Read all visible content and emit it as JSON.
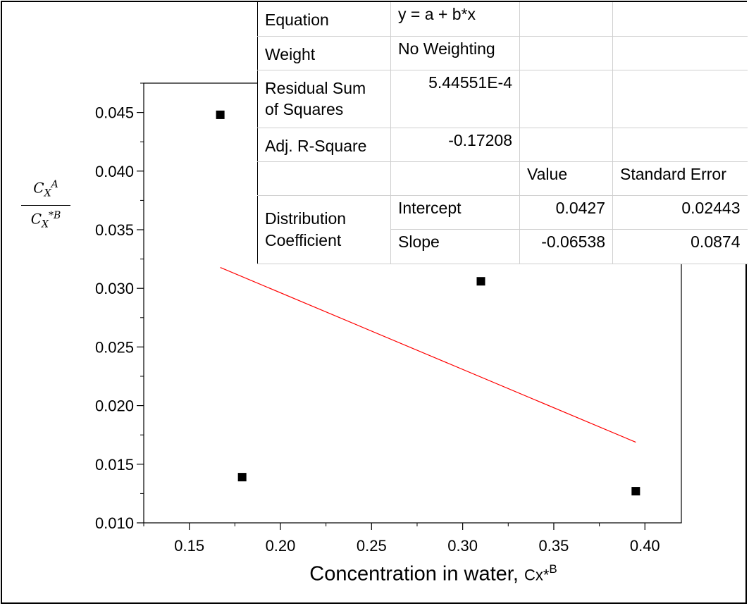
{
  "chart_data": {
    "type": "scatter",
    "xlabel_main": "Concentration in water, ",
    "xlabel_sub": "Cx*",
    "xlabel_sup": "B",
    "ylabel": {
      "numerator": "C",
      "numerator_sub": "X",
      "numerator_sup": "A",
      "denominator": "C",
      "denominator_sub": "X",
      "denominator_sup": "*B"
    },
    "xlim": [
      0.125,
      0.42
    ],
    "ylim": [
      0.01,
      0.0475
    ],
    "x_ticks": [
      "0.15",
      "0.20",
      "0.25",
      "0.30",
      "0.35",
      "0.40"
    ],
    "y_ticks": [
      "0.045",
      "0.040",
      "0.035",
      "0.030",
      "0.025",
      "0.020",
      "0.015",
      "0.010"
    ],
    "series": [
      {
        "points": [
          {
            "x": 0.167,
            "y": 0.0448
          },
          {
            "x": 0.179,
            "y": 0.0139
          },
          {
            "x": 0.31,
            "y": 0.0306
          },
          {
            "x": 0.395,
            "y": 0.0127
          }
        ],
        "marker": "square",
        "color": "#000000"
      }
    ],
    "fit_line": {
      "x_start": 0.167,
      "x_end": 0.395,
      "intercept": 0.0427,
      "slope": -0.06538,
      "color": "#ff0000"
    },
    "grid": false
  },
  "stats_table": {
    "equation_label": "Equation",
    "equation_value": "y = a + b*x",
    "weight_label": "Weight",
    "weight_value": "No Weighting",
    "rss_label": "Residual Sum of Squares",
    "rss_value": "5.44551E-4",
    "adjr_label": "Adj. R-Square",
    "adjr_value": "-0.17208",
    "value_header": "Value",
    "stderr_header": "Standard Error",
    "group_label": "Distribution Coefficient",
    "intercept_label": "Intercept",
    "intercept_value": "0.0427",
    "intercept_stderr": "0.02443",
    "slope_label": "Slope",
    "slope_value": "-0.06538",
    "slope_stderr": "0.0874"
  }
}
